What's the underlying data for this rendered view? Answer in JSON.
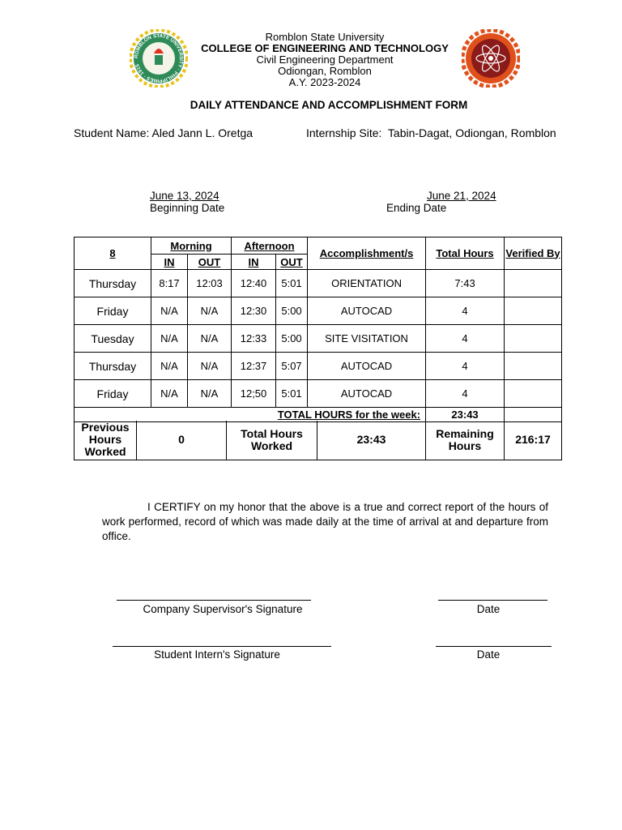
{
  "header": {
    "university": "Romblon State University",
    "college": "COLLEGE OF ENGINEERING AND TECHNOLOGY",
    "department": "Civil Engineering Department",
    "location": "Odiongan, Romblon",
    "academic_year": "A.Y. 2023-2024",
    "left_logo_text": "ROMBLON STATE UNIVERSITY · PHILIPPINES · 1915",
    "right_logo_text": "COLLEGE OF ENGINEERING AND TECHNOLOGY",
    "colors": {
      "left_logo": "#2e8b57",
      "left_logo_ring": "#e8c21a",
      "right_logo": "#8b1a1a",
      "right_logo_ring": "#e0501a"
    }
  },
  "form_title": "DAILY ATTENDANCE AND ACCOMPLISHMENT FORM",
  "student": {
    "label": "Student Name:",
    "value": "Aled Jann L. Oretga"
  },
  "site": {
    "label": "Internship Site:",
    "value": "Tabin-Dagat, Odiongan, Romblon"
  },
  "dates": {
    "beginning": {
      "value": "June 13, 2024",
      "label": "Beginning Date"
    },
    "ending": {
      "value": "June 21, 2024",
      "label": "Ending Date"
    }
  },
  "table": {
    "headers": {
      "week": "8",
      "morning": "Morning",
      "afternoon": "Afternoon",
      "in": "IN",
      "out": "OUT",
      "accomplishment": "Accomplishment/s",
      "total_hours": "Total Hours",
      "verified_by": "Verified By"
    },
    "rows": [
      {
        "day": "Thursday",
        "am_in": "8:17",
        "am_out": "12:03",
        "pm_in": "12:40",
        "pm_out": "5:01",
        "accomplishment": "ORIENTATION",
        "total": "7:43",
        "verified": ""
      },
      {
        "day": "Friday",
        "am_in": "N/A",
        "am_out": "N/A",
        "pm_in": "12:30",
        "pm_out": "5:00",
        "accomplishment": "AUTOCAD",
        "total": "4",
        "verified": ""
      },
      {
        "day": "Tuesday",
        "am_in": "N/A",
        "am_out": "N/A",
        "pm_in": "12:33",
        "pm_out": "5:00",
        "accomplishment": "SITE VISITATION",
        "total": "4",
        "verified": ""
      },
      {
        "day": "Thursday",
        "am_in": "N/A",
        "am_out": "N/A",
        "pm_in": "12:37",
        "pm_out": "5:07",
        "accomplishment": "AUTOCAD",
        "total": "4",
        "verified": ""
      },
      {
        "day": "Friday",
        "am_in": "N/A",
        "am_out": "N/A",
        "pm_in": "12;50",
        "pm_out": "5:01",
        "accomplishment": "AUTOCAD",
        "total": "4",
        "verified": ""
      }
    ],
    "week_total_label": "TOTAL HOURS for the week:",
    "week_total": "23:43",
    "summary": {
      "previous_label": "Previous Hours Worked",
      "previous": "0",
      "total_label": "Total Hours Worked",
      "total": "23:43",
      "remaining_label": "Remaining Hours",
      "remaining": "216:17"
    }
  },
  "certification": "I CERTIFY on my honor that the above is a true and correct report of the hours of work performed, record of which was made daily at the time of arrival at and departure from office.",
  "signatures": {
    "supervisor": "Company Supervisor's Signature",
    "supervisor_date": "Date",
    "intern": "Student Intern's Signature",
    "intern_date": "Date"
  }
}
